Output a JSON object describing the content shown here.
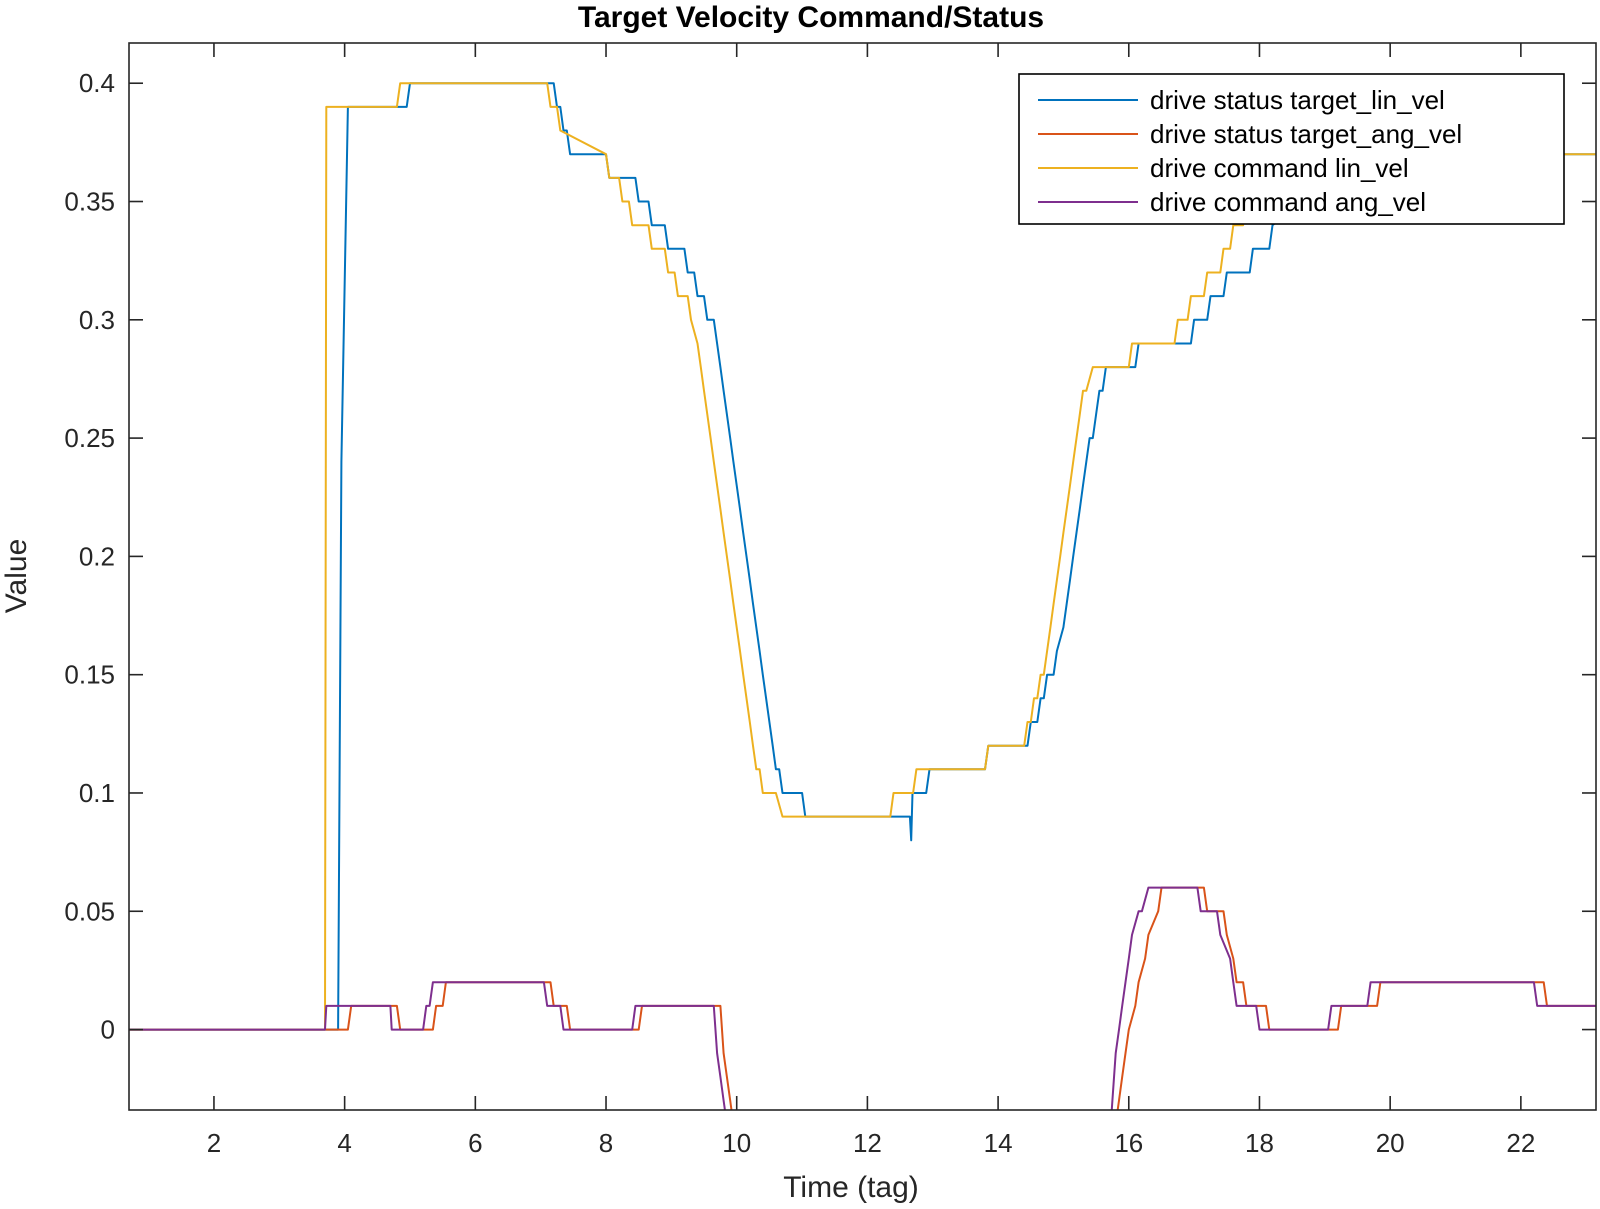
{
  "chart_data": {
    "type": "line",
    "title": "Target Velocity Command/Status",
    "xlabel": "Time (tag)",
    "ylabel": "Value",
    "xlim": [
      0.7,
      23.15
    ],
    "ylim": [
      -0.034,
      0.417
    ],
    "xticks": [
      2,
      4,
      6,
      8,
      10,
      12,
      14,
      16,
      18,
      20,
      22
    ],
    "yticks": [
      0,
      0.05,
      0.1,
      0.15,
      0.2,
      0.25,
      0.3,
      0.35,
      0.4
    ],
    "xtick_labels": [
      "2",
      "4",
      "6",
      "8",
      "10",
      "12",
      "14",
      "16",
      "18",
      "20",
      "22"
    ],
    "ytick_labels": [
      "0",
      "0.05",
      "0.1",
      "0.15",
      "0.2",
      "0.25",
      "0.3",
      "0.35",
      "0.4"
    ],
    "grid": false,
    "legend_position": "top-right",
    "series": [
      {
        "name": "drive status target_lin_vel",
        "color": "#0072BD",
        "x": [
          0.7,
          3.9,
          3.95,
          4.05,
          4.1,
          4.95,
          5.0,
          7.2,
          7.25,
          7.3,
          7.35,
          7.4,
          7.45,
          8.0,
          8.05,
          8.45,
          8.5,
          8.65,
          8.7,
          8.9,
          8.95,
          9.2,
          9.25,
          9.35,
          9.4,
          9.5,
          9.55,
          9.65,
          9.7,
          9.75,
          9.8,
          9.85,
          9.9,
          9.95,
          10.0,
          10.05,
          10.1,
          10.15,
          10.2,
          10.25,
          10.3,
          10.35,
          10.4,
          10.45,
          10.5,
          10.55,
          10.6,
          10.65,
          10.7,
          10.8,
          10.85,
          11.0,
          11.05,
          12.4,
          12.45,
          12.65,
          12.67,
          12.69,
          12.7,
          12.9,
          12.95,
          13.8,
          13.85,
          14.45,
          14.5,
          14.6,
          14.65,
          14.7,
          14.75,
          14.85,
          14.9,
          15.0,
          15.05,
          15.1,
          15.15,
          15.2,
          15.25,
          15.3,
          15.35,
          15.4,
          15.45,
          15.5,
          15.55,
          15.6,
          15.65,
          15.7,
          15.75,
          15.8,
          15.85,
          16.1,
          16.15,
          16.5,
          16.55,
          16.95,
          17.0,
          17.2,
          17.25,
          17.45,
          17.5,
          17.85,
          17.9,
          18.15,
          18.2,
          18.65,
          18.7,
          23.15
        ],
        "y": [
          0.0,
          0.0,
          0.24,
          0.39,
          0.39,
          0.39,
          0.4,
          0.4,
          0.39,
          0.39,
          0.38,
          0.38,
          0.37,
          0.37,
          0.36,
          0.36,
          0.35,
          0.35,
          0.34,
          0.34,
          0.33,
          0.33,
          0.32,
          0.32,
          0.31,
          0.31,
          0.3,
          0.3,
          0.29,
          0.28,
          0.27,
          0.26,
          0.25,
          0.24,
          0.23,
          0.22,
          0.21,
          0.2,
          0.19,
          0.18,
          0.17,
          0.16,
          0.15,
          0.14,
          0.13,
          0.12,
          0.11,
          0.11,
          0.1,
          0.1,
          0.1,
          0.1,
          0.09,
          0.09,
          0.09,
          0.09,
          0.08,
          0.1,
          0.1,
          0.1,
          0.11,
          0.11,
          0.12,
          0.12,
          0.13,
          0.13,
          0.14,
          0.14,
          0.15,
          0.15,
          0.16,
          0.17,
          0.18,
          0.19,
          0.2,
          0.21,
          0.22,
          0.23,
          0.24,
          0.25,
          0.25,
          0.26,
          0.27,
          0.27,
          0.28,
          0.28,
          0.28,
          0.28,
          0.28,
          0.28,
          0.29,
          0.29,
          0.29,
          0.29,
          0.3,
          0.3,
          0.31,
          0.31,
          0.32,
          0.32,
          0.33,
          0.33,
          0.34,
          0.35,
          0.37,
          0.37
        ]
      },
      {
        "name": "drive status target_ang_vel",
        "color": "#D95319",
        "x": [
          0.7,
          3.75,
          3.8,
          4.05,
          4.1,
          4.8,
          4.85,
          5.35,
          5.4,
          5.5,
          5.55,
          7.15,
          7.2,
          7.4,
          7.45,
          8.5,
          8.55,
          9.75,
          9.8,
          9.85,
          9.9,
          9.95,
          10.0,
          15.75,
          15.8,
          15.85,
          15.9,
          15.95,
          16.0,
          16.1,
          16.15,
          16.25,
          16.3,
          16.45,
          16.5,
          17.15,
          17.2,
          17.45,
          17.5,
          17.6,
          17.65,
          17.75,
          17.8,
          18.1,
          18.15,
          19.2,
          19.25,
          19.8,
          19.85,
          22.35,
          22.4,
          23.15
        ],
        "y": [
          0.0,
          0.0,
          0.0,
          0.0,
          0.01,
          0.01,
          0.0,
          0.0,
          0.01,
          0.01,
          0.02,
          0.02,
          0.01,
          0.01,
          0.0,
          0.0,
          0.01,
          0.01,
          -0.01,
          -0.02,
          -0.03,
          -0.04,
          -0.05,
          -0.05,
          -0.04,
          -0.03,
          -0.02,
          -0.01,
          0.0,
          0.01,
          0.02,
          0.03,
          0.04,
          0.05,
          0.06,
          0.06,
          0.05,
          0.05,
          0.04,
          0.03,
          0.02,
          0.02,
          0.01,
          0.01,
          0.0,
          0.0,
          0.01,
          0.01,
          0.02,
          0.02,
          0.01,
          0.01
        ]
      },
      {
        "name": "drive command lin_vel",
        "color": "#EDB120",
        "x": [
          0.7,
          3.7,
          3.72,
          4.8,
          4.85,
          7.1,
          7.15,
          7.25,
          7.3,
          8.0,
          8.05,
          8.2,
          8.25,
          8.35,
          8.4,
          8.65,
          8.7,
          8.9,
          8.95,
          9.05,
          9.1,
          9.25,
          9.3,
          9.4,
          9.45,
          9.5,
          9.55,
          9.6,
          9.65,
          9.7,
          9.75,
          9.8,
          9.85,
          9.9,
          9.95,
          10.0,
          10.05,
          10.1,
          10.15,
          10.2,
          10.25,
          10.3,
          10.35,
          10.4,
          10.45,
          10.5,
          10.55,
          10.6,
          10.7,
          10.75,
          12.35,
          12.4,
          12.7,
          12.75,
          13.8,
          13.85,
          14.4,
          14.45,
          14.5,
          14.55,
          14.6,
          14.65,
          14.7,
          14.75,
          14.8,
          14.85,
          14.9,
          14.95,
          15.0,
          15.05,
          15.1,
          15.15,
          15.2,
          15.25,
          15.3,
          15.35,
          15.45,
          15.5,
          15.55,
          15.6,
          15.7,
          15.75,
          16.0,
          16.05,
          16.4,
          16.45,
          16.7,
          16.75,
          16.9,
          16.95,
          17.15,
          17.2,
          17.4,
          17.45,
          17.55,
          17.6,
          17.75,
          17.8,
          18.05,
          18.1,
          18.25,
          18.3,
          23.15
        ],
        "y": [
          0.0,
          0.0,
          0.39,
          0.39,
          0.4,
          0.4,
          0.39,
          0.39,
          0.38,
          0.37,
          0.36,
          0.36,
          0.35,
          0.35,
          0.34,
          0.34,
          0.33,
          0.33,
          0.32,
          0.32,
          0.31,
          0.31,
          0.3,
          0.29,
          0.28,
          0.27,
          0.26,
          0.25,
          0.24,
          0.23,
          0.22,
          0.21,
          0.2,
          0.19,
          0.18,
          0.17,
          0.16,
          0.15,
          0.14,
          0.13,
          0.12,
          0.11,
          0.11,
          0.1,
          0.1,
          0.1,
          0.1,
          0.1,
          0.09,
          0.09,
          0.09,
          0.1,
          0.1,
          0.11,
          0.11,
          0.12,
          0.12,
          0.13,
          0.13,
          0.14,
          0.14,
          0.15,
          0.15,
          0.16,
          0.17,
          0.18,
          0.19,
          0.2,
          0.21,
          0.22,
          0.23,
          0.24,
          0.25,
          0.26,
          0.27,
          0.27,
          0.28,
          0.28,
          0.28,
          0.28,
          0.28,
          0.28,
          0.28,
          0.29,
          0.29,
          0.29,
          0.29,
          0.3,
          0.3,
          0.31,
          0.31,
          0.32,
          0.32,
          0.33,
          0.33,
          0.34,
          0.34,
          0.35,
          0.35,
          0.36,
          0.36,
          0.37,
          0.37
        ]
      },
      {
        "name": "drive command ang_vel",
        "color": "#7E2F8E",
        "x": [
          0.7,
          3.7,
          3.72,
          4.7,
          4.72,
          5.2,
          5.25,
          5.3,
          5.35,
          7.05,
          7.1,
          7.3,
          7.35,
          8.4,
          8.45,
          9.65,
          9.7,
          9.75,
          9.8,
          9.85,
          9.9,
          15.7,
          15.75,
          15.8,
          15.85,
          15.9,
          15.95,
          16.0,
          16.05,
          16.15,
          16.2,
          16.3,
          16.35,
          17.05,
          17.1,
          17.35,
          17.4,
          17.55,
          17.6,
          17.65,
          17.7,
          17.95,
          18.0,
          19.05,
          19.1,
          19.65,
          19.7,
          22.2,
          22.25,
          23.15
        ],
        "y": [
          0.0,
          0.0,
          0.01,
          0.01,
          0.0,
          0.0,
          0.01,
          0.01,
          0.02,
          0.02,
          0.01,
          0.01,
          0.0,
          0.0,
          0.01,
          0.01,
          -0.01,
          -0.02,
          -0.03,
          -0.04,
          -0.05,
          -0.05,
          -0.03,
          -0.01,
          0.0,
          0.01,
          0.02,
          0.03,
          0.04,
          0.05,
          0.05,
          0.06,
          0.06,
          0.06,
          0.05,
          0.05,
          0.04,
          0.03,
          0.02,
          0.01,
          0.01,
          0.01,
          0.0,
          0.0,
          0.01,
          0.01,
          0.02,
          0.02,
          0.01,
          0.01
        ]
      }
    ]
  }
}
